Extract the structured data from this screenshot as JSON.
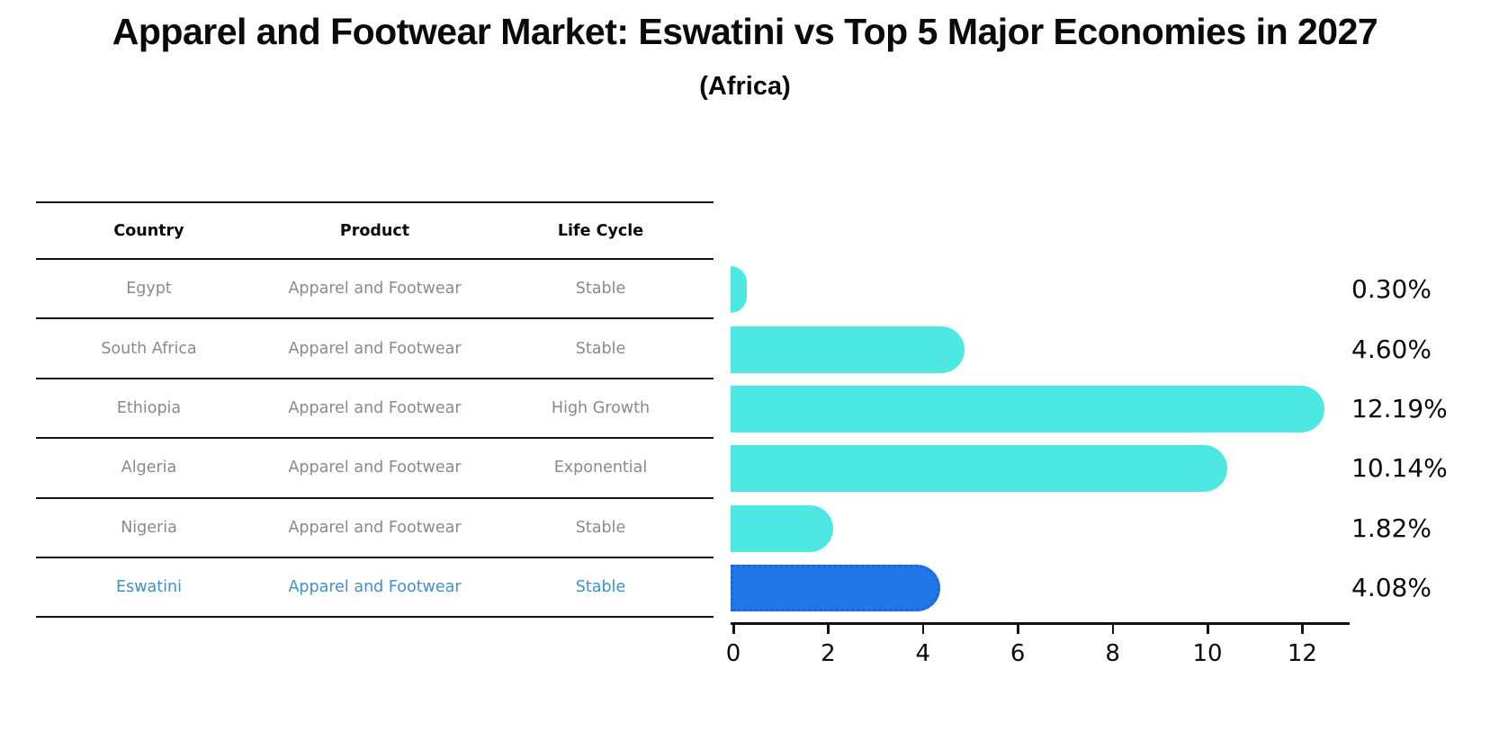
{
  "title": "Apparel and Footwear Market: Eswatini vs Top 5 Major Economies in 2027",
  "subtitle": "(Africa)",
  "table": {
    "columns": [
      "Country",
      "Product",
      "Life Cycle"
    ],
    "rows": [
      {
        "country": "Egypt",
        "product": "Apparel and Footwear",
        "life_cycle": "Stable",
        "highlight": false
      },
      {
        "country": "South Africa",
        "product": "Apparel and Footwear",
        "life_cycle": "Stable",
        "highlight": false
      },
      {
        "country": "Ethiopia",
        "product": "Apparel and Footwear",
        "life_cycle": "High Growth",
        "highlight": false
      },
      {
        "country": "Algeria",
        "product": "Apparel and Footwear",
        "life_cycle": "Exponential",
        "highlight": false
      },
      {
        "country": "Nigeria",
        "product": "Apparel and Footwear",
        "life_cycle": "Stable",
        "highlight": false
      },
      {
        "country": "Eswatini",
        "product": "Apparel and Footwear",
        "life_cycle": "Stable",
        "highlight": true
      }
    ]
  },
  "chart_data": {
    "type": "bar",
    "orientation": "horizontal",
    "title": "Apparel and Footwear Market: Eswatini vs Top 5 Major Economies in 2027 (Africa)",
    "categories": [
      "Egypt",
      "South Africa",
      "Ethiopia",
      "Algeria",
      "Nigeria",
      "Eswatini"
    ],
    "values": [
      0.3,
      4.6,
      12.19,
      10.14,
      1.82,
      4.08
    ],
    "value_labels": [
      "0.30%",
      "4.60%",
      "12.19%",
      "10.14%",
      "1.82%",
      "4.08%"
    ],
    "highlight_index": 5,
    "x_ticks": [
      0,
      2,
      4,
      6,
      8,
      10,
      12
    ],
    "xlim": [
      0,
      13
    ],
    "xlabel": "",
    "ylabel": "",
    "grid": false,
    "legend": false
  },
  "colors": {
    "bar": "#4DE8E2",
    "highlight_bar": "#2277E8",
    "highlight_border": "#1A66D9",
    "highlight_text": "#3E8FD0",
    "table_text": "#8A8A8A",
    "heading_text": "#0A0A0A"
  }
}
